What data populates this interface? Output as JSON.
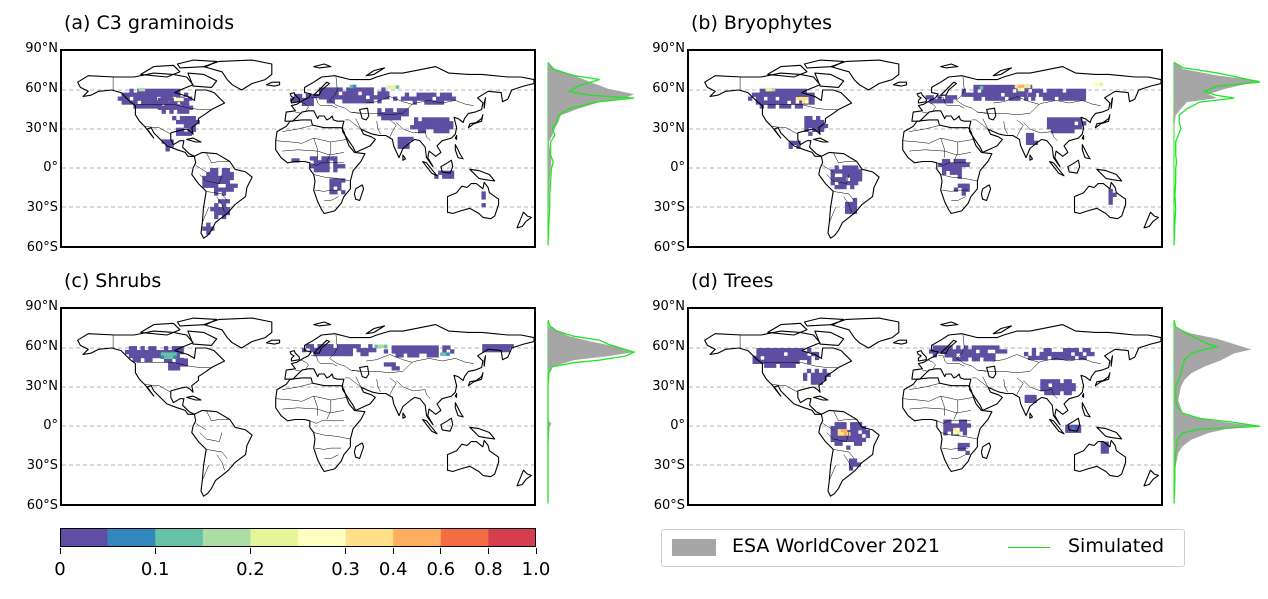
{
  "panels": [
    {
      "id": "a",
      "title": "(a) C3 graminoids",
      "blobs": [
        {
          "lon": -110,
          "lat": 55,
          "w": 55,
          "h": 18,
          "v": 0.02
        },
        {
          "lon": -95,
          "lat": 50,
          "w": 30,
          "h": 14,
          "v": 0.03
        },
        {
          "lon": -88,
          "lat": 35,
          "w": 22,
          "h": 16,
          "v": 0.02
        },
        {
          "lon": -102,
          "lat": 20,
          "w": 10,
          "h": 10,
          "v": 0.02
        },
        {
          "lon": -62,
          "lat": -8,
          "w": 28,
          "h": 22,
          "v": 0.02
        },
        {
          "lon": -60,
          "lat": -30,
          "w": 14,
          "h": 18,
          "v": 0.02
        },
        {
          "lon": -70,
          "lat": -45,
          "w": 6,
          "h": 12,
          "v": 0.02
        },
        {
          "lon": 5,
          "lat": 55,
          "w": 28,
          "h": 10,
          "v": 0.02
        },
        {
          "lon": 40,
          "lat": 58,
          "w": 60,
          "h": 14,
          "v": 0.03
        },
        {
          "lon": 95,
          "lat": 55,
          "w": 45,
          "h": 12,
          "v": 0.02
        },
        {
          "lon": 70,
          "lat": 44,
          "w": 25,
          "h": 10,
          "v": 0.02
        },
        {
          "lon": 100,
          "lat": 35,
          "w": 35,
          "h": 14,
          "v": 0.02
        },
        {
          "lon": 20,
          "lat": 5,
          "w": 28,
          "h": 14,
          "v": 0.02
        },
        {
          "lon": 28,
          "lat": -12,
          "w": 14,
          "h": 14,
          "v": 0.02
        },
        {
          "lon": -5,
          "lat": 8,
          "w": 12,
          "h": 5,
          "v": 0.02
        },
        {
          "lon": 80,
          "lat": 22,
          "w": 14,
          "h": 10,
          "v": 0.02
        },
        {
          "lon": 110,
          "lat": -3,
          "w": 18,
          "h": 8,
          "v": 0.02
        },
        {
          "lon": 140,
          "lat": -20,
          "w": 6,
          "h": 16,
          "v": 0.02
        }
      ],
      "hotspots": [
        {
          "lon": -92,
          "lat": 54,
          "w": 10,
          "h": 5,
          "v": 0.3
        },
        {
          "lon": -120,
          "lat": 62,
          "w": 8,
          "h": 4,
          "v": 0.2
        },
        {
          "lon": 70,
          "lat": 64,
          "w": 10,
          "h": 4,
          "v": 0.25
        },
        {
          "lon": 40,
          "lat": 65,
          "w": 6,
          "h": 3,
          "v": 0.15
        }
      ],
      "esa_profile": [
        [
          -58,
          0
        ],
        [
          -40,
          0
        ],
        [
          -30,
          0.01
        ],
        [
          -20,
          0.01
        ],
        [
          -10,
          0.02
        ],
        [
          0,
          0.03
        ],
        [
          5,
          0.04
        ],
        [
          10,
          0.03
        ],
        [
          20,
          0.01
        ],
        [
          25,
          0.05
        ],
        [
          30,
          0.08
        ],
        [
          35,
          0.12
        ],
        [
          40,
          0.15
        ],
        [
          45,
          0.35
        ],
        [
          50,
          0.6
        ],
        [
          53,
          0.9
        ],
        [
          56,
          1.0
        ],
        [
          60,
          0.7
        ],
        [
          65,
          0.5
        ],
        [
          70,
          0.3
        ],
        [
          75,
          0.08
        ],
        [
          80,
          0.0
        ]
      ],
      "sim_profile": [
        [
          -58,
          0
        ],
        [
          -40,
          0.01
        ],
        [
          -30,
          0.02
        ],
        [
          -20,
          0.02
        ],
        [
          -10,
          0.03
        ],
        [
          0,
          0.04
        ],
        [
          5,
          0.06
        ],
        [
          10,
          0.03
        ],
        [
          20,
          0.03
        ],
        [
          25,
          0.08
        ],
        [
          30,
          0.05
        ],
        [
          35,
          0.1
        ],
        [
          40,
          0.12
        ],
        [
          45,
          0.25
        ],
        [
          50,
          0.55
        ],
        [
          53,
          1.0
        ],
        [
          55,
          0.5
        ],
        [
          58,
          0.25
        ],
        [
          62,
          0.35
        ],
        [
          67,
          0.6
        ],
        [
          70,
          0.3
        ],
        [
          75,
          0.05
        ],
        [
          80,
          0.0
        ]
      ]
    },
    {
      "id": "b",
      "title": "(b) Bryophytes",
      "blobs": [
        {
          "lon": -110,
          "lat": 55,
          "w": 50,
          "h": 18,
          "v": 0.03
        },
        {
          "lon": -85,
          "lat": 35,
          "w": 20,
          "h": 16,
          "v": 0.02
        },
        {
          "lon": -102,
          "lat": 20,
          "w": 10,
          "h": 8,
          "v": 0.02
        },
        {
          "lon": -62,
          "lat": -5,
          "w": 26,
          "h": 20,
          "v": 0.02
        },
        {
          "lon": -58,
          "lat": -28,
          "w": 12,
          "h": 16,
          "v": 0.02
        },
        {
          "lon": 10,
          "lat": 55,
          "w": 25,
          "h": 8,
          "v": 0.02
        },
        {
          "lon": 55,
          "lat": 60,
          "w": 60,
          "h": 14,
          "v": 0.03
        },
        {
          "lon": 100,
          "lat": 58,
          "w": 50,
          "h": 12,
          "v": 0.03
        },
        {
          "lon": 105,
          "lat": 35,
          "w": 30,
          "h": 14,
          "v": 0.02
        },
        {
          "lon": 20,
          "lat": 2,
          "w": 26,
          "h": 16,
          "v": 0.02
        },
        {
          "lon": 28,
          "lat": -15,
          "w": 12,
          "h": 12,
          "v": 0.02
        },
        {
          "lon": 80,
          "lat": 25,
          "w": 12,
          "h": 10,
          "v": 0.02
        },
        {
          "lon": 140,
          "lat": -20,
          "w": 6,
          "h": 14,
          "v": 0.02
        }
      ],
      "hotspots": [
        {
          "lon": -95,
          "lat": 54,
          "w": 12,
          "h": 6,
          "v": 0.4
        },
        {
          "lon": -120,
          "lat": 62,
          "w": 8,
          "h": 4,
          "v": 0.25
        },
        {
          "lon": 72,
          "lat": 64,
          "w": 12,
          "h": 5,
          "v": 0.45
        },
        {
          "lon": 130,
          "lat": 66,
          "w": 8,
          "h": 4,
          "v": 0.3
        },
        {
          "lon": 40,
          "lat": 64,
          "w": 6,
          "h": 3,
          "v": 0.2
        }
      ],
      "esa_profile": [
        [
          -58,
          0
        ],
        [
          -40,
          0
        ],
        [
          -20,
          0
        ],
        [
          0,
          0
        ],
        [
          20,
          0
        ],
        [
          30,
          0
        ],
        [
          40,
          0.02
        ],
        [
          45,
          0.08
        ],
        [
          50,
          0.15
        ],
        [
          53,
          0.5
        ],
        [
          56,
          0.4
        ],
        [
          60,
          0.6
        ],
        [
          63,
          0.8
        ],
        [
          66,
          1.0
        ],
        [
          70,
          0.5
        ],
        [
          75,
          0.1
        ],
        [
          80,
          0
        ]
      ],
      "sim_profile": [
        [
          -58,
          0
        ],
        [
          -40,
          0.01
        ],
        [
          -30,
          0.02
        ],
        [
          -20,
          0.01
        ],
        [
          -10,
          0.02
        ],
        [
          0,
          0.02
        ],
        [
          5,
          0.03
        ],
        [
          10,
          0.02
        ],
        [
          20,
          0.02
        ],
        [
          25,
          0.05
        ],
        [
          30,
          0.08
        ],
        [
          35,
          0.06
        ],
        [
          40,
          0.06
        ],
        [
          45,
          0.15
        ],
        [
          50,
          0.3
        ],
        [
          53,
          0.7
        ],
        [
          55,
          0.5
        ],
        [
          58,
          0.35
        ],
        [
          62,
          0.5
        ],
        [
          65,
          1.0
        ],
        [
          68,
          0.8
        ],
        [
          72,
          0.5
        ],
        [
          76,
          0.1
        ],
        [
          80,
          0
        ]
      ]
    },
    {
      "id": "c",
      "title": "(c) Shrubs",
      "blobs": [
        {
          "lon": -110,
          "lat": 57,
          "w": 50,
          "h": 15,
          "v": 0.03
        },
        {
          "lon": -95,
          "lat": 50,
          "w": 20,
          "h": 10,
          "v": 0.02
        },
        {
          "lon": 30,
          "lat": 60,
          "w": 60,
          "h": 12,
          "v": 0.02
        },
        {
          "lon": 90,
          "lat": 60,
          "w": 55,
          "h": 10,
          "v": 0.02
        },
        {
          "lon": 150,
          "lat": 62,
          "w": 25,
          "h": 8,
          "v": 0.02
        },
        {
          "lon": 70,
          "lat": 48,
          "w": 15,
          "h": 8,
          "v": 0.02
        }
      ],
      "hotspots": [
        {
          "lon": -100,
          "lat": 56,
          "w": 14,
          "h": 6,
          "v": 0.15
        },
        {
          "lon": 62,
          "lat": 63,
          "w": 12,
          "h": 4,
          "v": 0.18
        },
        {
          "lon": 110,
          "lat": 57,
          "w": 8,
          "h": 4,
          "v": 0.12
        }
      ],
      "esa_profile": [
        [
          -58,
          0
        ],
        [
          -20,
          0
        ],
        [
          0,
          0.02
        ],
        [
          2,
          0.04
        ],
        [
          4,
          0.01
        ],
        [
          10,
          0
        ],
        [
          40,
          0
        ],
        [
          45,
          0.05
        ],
        [
          50,
          0.3
        ],
        [
          53,
          0.7
        ],
        [
          56,
          1.0
        ],
        [
          60,
          0.8
        ],
        [
          64,
          0.5
        ],
        [
          68,
          0.25
        ],
        [
          72,
          0.1
        ],
        [
          76,
          0
        ],
        [
          80,
          0
        ]
      ],
      "sim_profile": [
        [
          -58,
          0
        ],
        [
          -20,
          0
        ],
        [
          0,
          0
        ],
        [
          30,
          0
        ],
        [
          40,
          0.01
        ],
        [
          45,
          0.05
        ],
        [
          48,
          0.3
        ],
        [
          50,
          0.6
        ],
        [
          53,
          0.9
        ],
        [
          56,
          1.0
        ],
        [
          58,
          0.9
        ],
        [
          62,
          0.7
        ],
        [
          65,
          0.6
        ],
        [
          68,
          0.3
        ],
        [
          72,
          0.1
        ],
        [
          76,
          0.02
        ],
        [
          80,
          0
        ]
      ]
    },
    {
      "id": "d",
      "title": "(d) Trees",
      "blobs": [
        {
          "lon": -110,
          "lat": 55,
          "w": 55,
          "h": 16,
          "v": 0.02
        },
        {
          "lon": -85,
          "lat": 40,
          "w": 22,
          "h": 14,
          "v": 0.02
        },
        {
          "lon": -60,
          "lat": -5,
          "w": 30,
          "h": 22,
          "v": 0.03
        },
        {
          "lon": -58,
          "lat": -28,
          "w": 12,
          "h": 12,
          "v": 0.02
        },
        {
          "lon": 30,
          "lat": 58,
          "w": 60,
          "h": 14,
          "v": 0.03
        },
        {
          "lon": 100,
          "lat": 57,
          "w": 55,
          "h": 12,
          "v": 0.03
        },
        {
          "lon": 100,
          "lat": 32,
          "w": 30,
          "h": 14,
          "v": 0.02
        },
        {
          "lon": 22,
          "lat": 0,
          "w": 22,
          "h": 16,
          "v": 0.03
        },
        {
          "lon": 28,
          "lat": -15,
          "w": 12,
          "h": 10,
          "v": 0.02
        },
        {
          "lon": 80,
          "lat": 22,
          "w": 14,
          "h": 10,
          "v": 0.02
        },
        {
          "lon": 110,
          "lat": 0,
          "w": 18,
          "h": 8,
          "v": 0.03
        },
        {
          "lon": 135,
          "lat": -15,
          "w": 8,
          "h": 12,
          "v": 0.02
        }
      ],
      "hotspots": [
        {
          "lon": -63,
          "lat": -3,
          "w": 12,
          "h": 6,
          "v": 0.5
        },
        {
          "lon": 22,
          "lat": -2,
          "w": 6,
          "h": 6,
          "v": 0.35
        },
        {
          "lon": 110,
          "lat": 0,
          "w": 6,
          "h": 3,
          "v": 0.12
        }
      ],
      "esa_profile": [
        [
          -58,
          0
        ],
        [
          -40,
          0
        ],
        [
          -30,
          0.02
        ],
        [
          -20,
          0.05
        ],
        [
          -15,
          0.1
        ],
        [
          -10,
          0.2
        ],
        [
          -5,
          0.4
        ],
        [
          -2,
          0.6
        ],
        [
          0,
          1.0
        ],
        [
          3,
          0.6
        ],
        [
          6,
          0.3
        ],
        [
          10,
          0.1
        ],
        [
          20,
          0.05
        ],
        [
          30,
          0.08
        ],
        [
          35,
          0.12
        ],
        [
          40,
          0.2
        ],
        [
          45,
          0.35
        ],
        [
          50,
          0.55
        ],
        [
          55,
          0.7
        ],
        [
          58,
          0.9
        ],
        [
          62,
          0.7
        ],
        [
          66,
          0.5
        ],
        [
          70,
          0.2
        ],
        [
          75,
          0
        ],
        [
          80,
          0
        ]
      ],
      "sim_profile": [
        [
          -58,
          0
        ],
        [
          -40,
          0.01
        ],
        [
          -30,
          0.01
        ],
        [
          -20,
          0.02
        ],
        [
          -10,
          0.04
        ],
        [
          -5,
          0.1
        ],
        [
          -2,
          0.3
        ],
        [
          0,
          1.0
        ],
        [
          3,
          0.7
        ],
        [
          6,
          0.3
        ],
        [
          10,
          0.1
        ],
        [
          15,
          0.04
        ],
        [
          20,
          0.02
        ],
        [
          30,
          0.02
        ],
        [
          35,
          0.05
        ],
        [
          40,
          0.08
        ],
        [
          45,
          0.1
        ],
        [
          50,
          0.12
        ],
        [
          55,
          0.2
        ],
        [
          58,
          0.35
        ],
        [
          60,
          0.5
        ],
        [
          62,
          0.4
        ],
        [
          65,
          0.3
        ],
        [
          70,
          0.15
        ],
        [
          75,
          0.02
        ],
        [
          80,
          0
        ]
      ]
    }
  ],
  "lat_labels": [
    "90°N",
    "60°N",
    "30°N",
    "0°",
    "30°S",
    "60°S"
  ],
  "lat_values": [
    90,
    60,
    30,
    0,
    -30,
    -60
  ],
  "colorbar": {
    "colors": [
      "#5e4fa2",
      "#3288bd",
      "#66c2a5",
      "#abdda4",
      "#e6f598",
      "#ffffbf",
      "#fee08b",
      "#fdae61",
      "#f46d43",
      "#d53e4f"
    ],
    "boundaries": [
      0,
      0.05,
      0.1,
      0.15,
      0.2,
      0.25,
      0.3,
      0.4,
      0.6,
      0.8,
      1.0
    ],
    "tick_labels": [
      "0",
      "0.1",
      "0.2",
      "0.3",
      "0.4",
      "0.6",
      "0.8",
      "1.0"
    ],
    "tick_values": [
      0,
      0.1,
      0.2,
      0.3,
      0.4,
      0.6,
      0.8,
      1.0
    ]
  },
  "legend": {
    "esa_label": "ESA WorldCover 2021",
    "sim_label": "Simulated",
    "esa_color": "#a6a6a6",
    "sim_color": "#1ee61e"
  },
  "continent_color": "#000000"
}
